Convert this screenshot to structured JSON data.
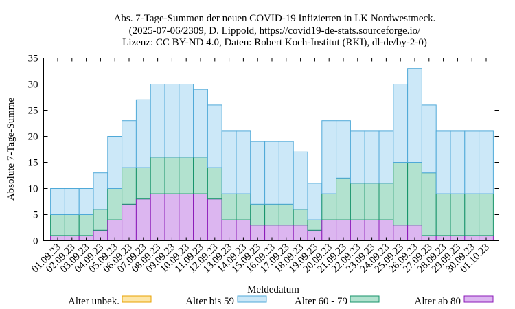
{
  "chart_data": {
    "type": "bar",
    "stacked": true,
    "title_lines": [
      "Abs. 7-Tage-Summen der neuen COVID-19 Infizierten in LK Nordwestmeck.",
      "(2025-07-06/2309, D. Lippold, https://covid19-de-stats.sourceforge.io/",
      "Lizenz: CC BY-ND 4.0, Daten: Robert Koch-Institut (RKI), dl-de/by-2-0)"
    ],
    "xlabel": "Meldedatum",
    "ylabel": "Absolute 7-Tage-Summe",
    "ylim": [
      0,
      35
    ],
    "yticks": [
      0,
      5,
      10,
      15,
      20,
      25,
      30,
      35
    ],
    "grid": false,
    "legend_position": "bottom",
    "categories": [
      "01.09.23",
      "02.09.23",
      "03.09.23",
      "04.09.23",
      "05.09.23",
      "06.09.23",
      "07.09.23",
      "08.09.23",
      "09.09.23",
      "10.09.23",
      "11.09.23",
      "12.09.23",
      "13.09.23",
      "14.09.23",
      "15.09.23",
      "16.09.23",
      "17.09.23",
      "18.09.23",
      "19.09.23",
      "20.09.23",
      "21.09.23",
      "22.09.23",
      "23.09.23",
      "24.09.23",
      "25.09.23",
      "26.09.23",
      "27.09.23",
      "28.09.23",
      "29.09.23",
      "30.09.23",
      "01.10.23"
    ],
    "series": [
      {
        "name": "Alter unbek.",
        "fill": "#fde6a8",
        "stroke": "#e8a200",
        "values": [
          0,
          0,
          0,
          0,
          0,
          0,
          0,
          0,
          0,
          0,
          0,
          0,
          0,
          0,
          0,
          0,
          0,
          0,
          0,
          0,
          0,
          0,
          0,
          0,
          0,
          0,
          0,
          0,
          0,
          0,
          0
        ]
      },
      {
        "name": "Alter bis 59",
        "fill": "#cce8f8",
        "stroke": "#4fa9d8",
        "values": [
          5,
          5,
          5,
          7,
          10,
          9,
          13,
          14,
          14,
          14,
          13,
          12,
          12,
          12,
          12,
          12,
          12,
          11,
          7,
          14,
          11,
          10,
          10,
          10,
          15,
          18,
          13,
          12,
          12,
          12,
          12
        ]
      },
      {
        "name": "Alter 60 - 79",
        "fill": "#b2e2cf",
        "stroke": "#16936a",
        "values": [
          4,
          4,
          4,
          4,
          6,
          7,
          6,
          7,
          7,
          7,
          7,
          6,
          5,
          5,
          4,
          4,
          4,
          3,
          2,
          5,
          8,
          7,
          7,
          7,
          12,
          12,
          12,
          8,
          8,
          8,
          8
        ]
      },
      {
        "name": "Alter ab 80",
        "fill": "#dcb6f0",
        "stroke": "#8b1ab8",
        "values": [
          1,
          1,
          1,
          2,
          4,
          7,
          8,
          9,
          9,
          9,
          9,
          8,
          4,
          4,
          3,
          3,
          3,
          3,
          2,
          4,
          4,
          4,
          4,
          4,
          3,
          3,
          1,
          1,
          1,
          1,
          1
        ]
      }
    ]
  }
}
